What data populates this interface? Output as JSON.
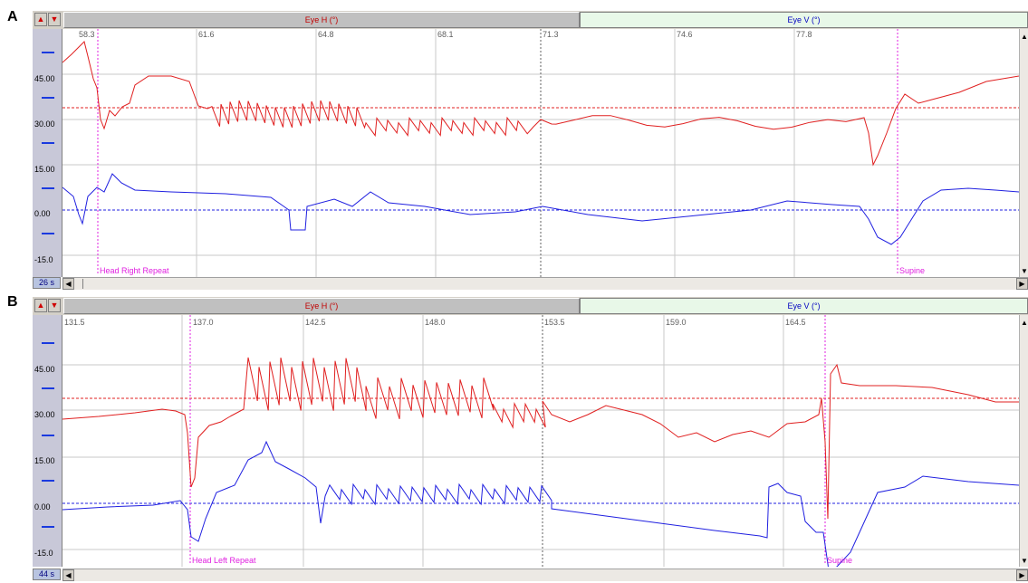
{
  "panels": [
    {
      "letter": "A",
      "tab_h": "Eye H (°)",
      "tab_v": "Eye V (°)",
      "time_labels": [
        "58.3",
        "61.6",
        "64.8",
        "68.1",
        "71.3",
        "74.6",
        "77.8"
      ],
      "y_labels": [
        "45.00",
        "30.00",
        "15.00",
        "0.00",
        "-15.0"
      ],
      "events": [
        "Head Right Repeat",
        "Supine"
      ],
      "time_badge": "26 s"
    },
    {
      "letter": "B",
      "tab_h": "Eye H (°)",
      "tab_v": "Eye V (°)",
      "time_labels": [
        "131.5",
        "137.0",
        "142.5",
        "148.0",
        "153.5",
        "159.0",
        "164.5"
      ],
      "y_labels": [
        "45.00",
        "30.00",
        "15.00",
        "0.00",
        "-15.0"
      ],
      "events": [
        "Head Left Repeat",
        "Supine"
      ],
      "time_badge": "44 s"
    }
  ],
  "colors": {
    "eye_h": "#e02020",
    "eye_v": "#2020e0",
    "event_marker": "#e020e0",
    "grid": "#c8c8c8"
  },
  "icons": {
    "scroll_up": "triangle-up",
    "scroll_down": "triangle-down",
    "scroll_left": "triangle-left",
    "scroll_right": "triangle-right"
  }
}
